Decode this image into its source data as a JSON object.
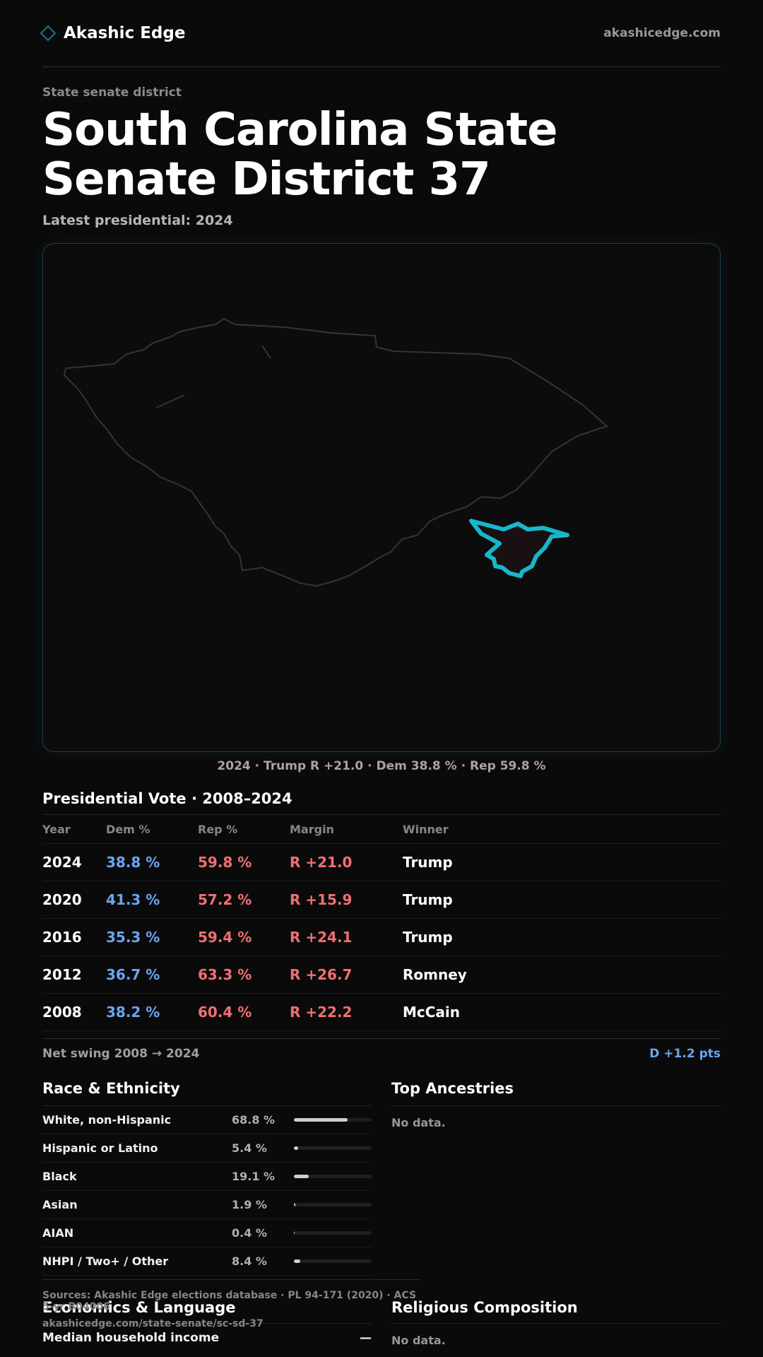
{
  "header": {
    "brand": "Akashic Edge",
    "site": "akashicedge.com"
  },
  "page": {
    "eyebrow": "State senate district",
    "title": "South Carolina State Senate District 37",
    "latest": "Latest presidential: 2024"
  },
  "map": {
    "caption": "2024 · Trump R +21.0 · Dem 38.8 % · Rep 59.8 %",
    "highlight_color": "#18b7c9"
  },
  "presidential": {
    "title": "Presidential Vote · 2008–2024",
    "columns": [
      "Year",
      "Dem %",
      "Rep %",
      "Margin",
      "Winner"
    ],
    "rows": [
      {
        "year": "2024",
        "dem": "38.8 %",
        "rep": "59.8 %",
        "margin": "R +21.0",
        "winner": "Trump"
      },
      {
        "year": "2020",
        "dem": "41.3 %",
        "rep": "57.2 %",
        "margin": "R +15.9",
        "winner": "Trump"
      },
      {
        "year": "2016",
        "dem": "35.3 %",
        "rep": "59.4 %",
        "margin": "R +24.1",
        "winner": "Trump"
      },
      {
        "year": "2012",
        "dem": "36.7 %",
        "rep": "63.3 %",
        "margin": "R +26.7",
        "winner": "Romney"
      },
      {
        "year": "2008",
        "dem": "38.2 %",
        "rep": "60.4 %",
        "margin": "R +22.2",
        "winner": "McCain"
      }
    ],
    "swing_label": "Net swing 2008 → 2024",
    "swing_value": "D +1.2 pts"
  },
  "race": {
    "title": "Race & Ethnicity",
    "rows": [
      {
        "name": "White, non-Hispanic",
        "pct": "68.8 %",
        "fraction": 0.688
      },
      {
        "name": "Hispanic or Latino",
        "pct": "5.4 %",
        "fraction": 0.054
      },
      {
        "name": "Black",
        "pct": "19.1 %",
        "fraction": 0.191
      },
      {
        "name": "Asian",
        "pct": "1.9 %",
        "fraction": 0.019
      },
      {
        "name": "AIAN",
        "pct": "0.4 %",
        "fraction": 0.004
      },
      {
        "name": "NHPI / Two+ / Other",
        "pct": "8.4 %",
        "fraction": 0.084
      }
    ]
  },
  "ancestries": {
    "title": "Top Ancestries",
    "empty": "No data."
  },
  "footer": {
    "sources": "Sources: Akashic Edge elections database · PL 94-171 (2020) · ACS 5-yr B04006",
    "url": "akashicedge.com/state-senate/sc-sd-37"
  },
  "economics": {
    "title": "Economics & Language",
    "rows": [
      {
        "label": "Median household income",
        "value": "—"
      }
    ]
  },
  "religion": {
    "title": "Religious Composition",
    "empty": "No data."
  }
}
